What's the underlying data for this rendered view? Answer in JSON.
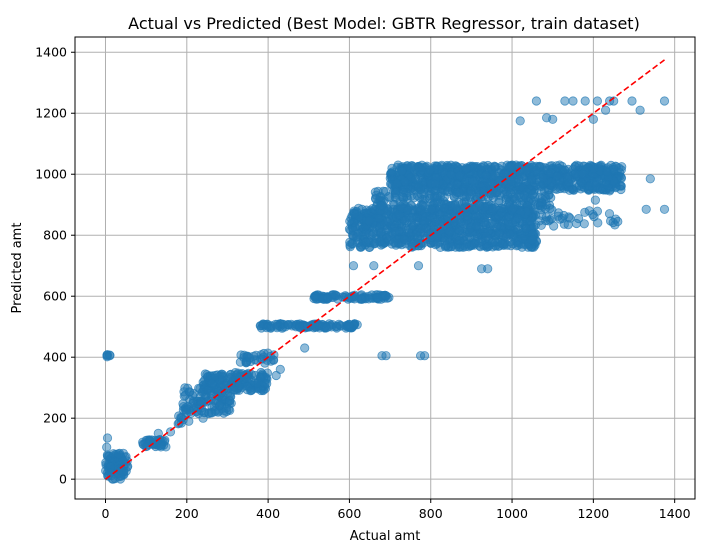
{
  "chart_data": {
    "type": "scatter",
    "title": "Actual vs Predicted (Best Model: GBTR Regressor, train dataset)",
    "xlabel": "Actual amt",
    "ylabel": "Predicted amt",
    "xlim": [
      -75,
      1450
    ],
    "ylim": [
      -65,
      1450
    ],
    "xticks": [
      0,
      200,
      400,
      600,
      800,
      1000,
      1200,
      1400
    ],
    "yticks": [
      0,
      200,
      400,
      600,
      800,
      1000,
      1200,
      1400
    ],
    "grid": true,
    "point_color": "#1f77b4",
    "point_alpha": 0.5,
    "reference_line": {
      "x": [
        0,
        1375
      ],
      "y": [
        0,
        1375
      ],
      "color": "#ff0000",
      "style": "dashed"
    },
    "clusters": [
      {
        "x_min": 0,
        "x_max": 55,
        "y_min": 0,
        "y_max": 85,
        "count": 90
      },
      {
        "x_min": 0,
        "x_max": 15,
        "y_min": 400,
        "y_max": 410,
        "count": 6
      },
      {
        "x_min": 90,
        "x_max": 150,
        "y_min": 105,
        "y_max": 130,
        "count": 40
      },
      {
        "x_min": 175,
        "x_max": 195,
        "y_min": 180,
        "y_max": 215,
        "count": 8
      },
      {
        "x_min": 190,
        "x_max": 310,
        "y_min": 215,
        "y_max": 300,
        "count": 110
      },
      {
        "x_min": 240,
        "x_max": 400,
        "y_min": 290,
        "y_max": 350,
        "count": 160
      },
      {
        "x_min": 330,
        "x_max": 420,
        "y_min": 380,
        "y_max": 415,
        "count": 30
      },
      {
        "x_min": 380,
        "x_max": 620,
        "y_min": 495,
        "y_max": 510,
        "count": 120
      },
      {
        "x_min": 510,
        "x_max": 700,
        "y_min": 590,
        "y_max": 605,
        "count": 90
      },
      {
        "x_min": 600,
        "x_max": 1060,
        "y_min": 760,
        "y_max": 890,
        "count": 900
      },
      {
        "x_min": 700,
        "x_max": 1270,
        "y_min": 945,
        "y_max": 1030,
        "count": 900
      },
      {
        "x_min": 660,
        "x_max": 1100,
        "y_min": 880,
        "y_max": 945,
        "count": 250
      },
      {
        "x_min": 1000,
        "x_max": 1260,
        "y_min": 830,
        "y_max": 880,
        "count": 40
      }
    ],
    "outliers": [
      [
        1060,
        1240
      ],
      [
        1130,
        1240
      ],
      [
        1150,
        1240
      ],
      [
        1180,
        1240
      ],
      [
        1210,
        1240
      ],
      [
        1240,
        1240
      ],
      [
        1250,
        1240
      ],
      [
        1295,
        1240
      ],
      [
        1375,
        1240
      ],
      [
        1085,
        1185
      ],
      [
        1100,
        1180
      ],
      [
        1020,
        1175
      ],
      [
        1230,
        1210
      ],
      [
        1315,
        1210
      ],
      [
        1200,
        1180
      ],
      [
        1340,
        985
      ],
      [
        1375,
        885
      ],
      [
        1330,
        885
      ],
      [
        1260,
        845
      ],
      [
        1205,
        915
      ],
      [
        1190,
        880
      ],
      [
        925,
        690
      ],
      [
        940,
        690
      ],
      [
        770,
        700
      ],
      [
        610,
        700
      ],
      [
        660,
        700
      ],
      [
        680,
        405
      ],
      [
        690,
        405
      ],
      [
        775,
        405
      ],
      [
        785,
        405
      ],
      [
        490,
        430
      ],
      [
        420,
        340
      ],
      [
        430,
        360
      ],
      [
        5,
        135
      ],
      [
        3,
        105
      ],
      [
        130,
        150
      ],
      [
        160,
        155
      ],
      [
        205,
        190
      ],
      [
        240,
        200
      ],
      [
        270,
        340
      ]
    ]
  }
}
